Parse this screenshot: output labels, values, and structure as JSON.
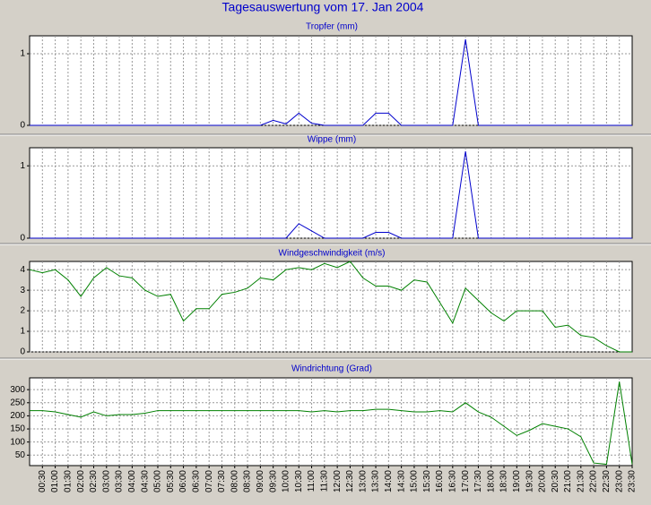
{
  "title": "Tagesauswertung vom 17. Jan 2004",
  "chart_data": [
    {
      "type": "line",
      "title": "Tropfer (mm)",
      "color": "#0000cc",
      "ylim": [
        0,
        1.25
      ],
      "yticks": [
        0,
        1
      ],
      "grid": true,
      "values": [
        0,
        0,
        0,
        0,
        0,
        0,
        0,
        0,
        0,
        0,
        0,
        0,
        0,
        0,
        0,
        0,
        0,
        0,
        0,
        0.07,
        0.02,
        0.17,
        0.03,
        0,
        0,
        0,
        0,
        0.17,
        0.17,
        0,
        0,
        0,
        0,
        0,
        1.2,
        0,
        0,
        0,
        0,
        0,
        0,
        0,
        0,
        0,
        0,
        0,
        0,
        0
      ]
    },
    {
      "type": "line",
      "title": "Wippe (mm)",
      "color": "#0000cc",
      "ylim": [
        0,
        1.25
      ],
      "yticks": [
        0,
        1
      ],
      "grid": true,
      "values": [
        0,
        0,
        0,
        0,
        0,
        0,
        0,
        0,
        0,
        0,
        0,
        0,
        0,
        0,
        0,
        0,
        0,
        0,
        0,
        0,
        0,
        0.2,
        0.1,
        0,
        0,
        0,
        0,
        0.08,
        0.08,
        0,
        0,
        0,
        0,
        0,
        1.2,
        0,
        0,
        0,
        0,
        0,
        0,
        0,
        0,
        0,
        0,
        0,
        0,
        0
      ]
    },
    {
      "type": "line",
      "title": "Windgeschwindigkeit (m/s)",
      "color": "#008000",
      "ylim": [
        0,
        4.4
      ],
      "yticks": [
        0,
        1,
        2,
        3,
        4
      ],
      "grid": true,
      "values": [
        4.0,
        3.85,
        4.0,
        3.5,
        2.7,
        3.6,
        4.1,
        3.7,
        3.6,
        3.0,
        2.7,
        2.8,
        1.5,
        2.1,
        2.1,
        2.8,
        2.9,
        3.1,
        3.6,
        3.5,
        4.0,
        4.1,
        4.0,
        4.3,
        4.1,
        4.4,
        3.6,
        3.2,
        3.2,
        3.0,
        3.5,
        3.4,
        2.4,
        1.4,
        3.1,
        2.5,
        1.9,
        1.5,
        2.0,
        2.0,
        2.0,
        1.2,
        1.3,
        0.8,
        0.7,
        0.3,
        0,
        0
      ]
    },
    {
      "type": "line",
      "title": "Windrichtung (Grad)",
      "color": "#008000",
      "ylim": [
        10,
        345
      ],
      "yticks": [
        50,
        100,
        150,
        200,
        250,
        300
      ],
      "grid": true,
      "categories": [
        null,
        "00:30",
        "01:00",
        "01:30",
        "02:00",
        "02:30",
        "03:00",
        "03:30",
        "04:00",
        "04:30",
        "05:00",
        "05:30",
        "06:00",
        "06:30",
        "07:00",
        "07:30",
        "08:00",
        "08:30",
        "09:00",
        "09:30",
        "10:00",
        "10:30",
        "11:00",
        "11:30",
        "12:00",
        "12:30",
        "13:00",
        "13:30",
        "14:00",
        "14:30",
        "15:00",
        "15:30",
        "16:00",
        "16:30",
        "17:00",
        "17:30",
        "18:00",
        "18:30",
        "19:00",
        "19:30",
        "20:00",
        "20:30",
        "21:00",
        "21:30",
        "22:00",
        "22:30",
        "23:00",
        "23:30"
      ],
      "values": [
        220,
        220,
        215,
        205,
        195,
        215,
        200,
        205,
        205,
        210,
        220,
        220,
        220,
        220,
        220,
        220,
        220,
        220,
        220,
        220,
        220,
        220,
        215,
        220,
        215,
        220,
        220,
        225,
        225,
        220,
        215,
        215,
        220,
        215,
        250,
        215,
        195,
        160,
        125,
        145,
        170,
        160,
        150,
        120,
        20,
        15,
        330,
        15
      ]
    }
  ]
}
